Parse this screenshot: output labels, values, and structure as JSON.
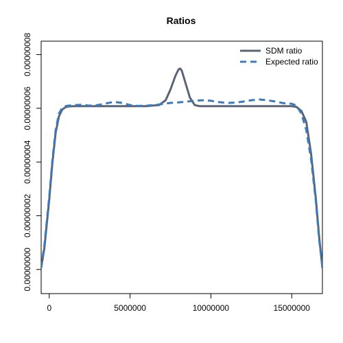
{
  "chart_data": {
    "type": "line",
    "title": "Ratios",
    "xlabel": "",
    "ylabel": "",
    "xlim": [
      -500000,
      16900000
    ],
    "ylim": [
      -9e-09,
      8.5e-08
    ],
    "x_ticks": [
      0,
      5000000,
      10000000,
      15000000
    ],
    "x_tick_labels": [
      "0",
      "5000000",
      "10000000",
      "15000000"
    ],
    "y_ticks": [
      0,
      2e-08,
      4e-08,
      6e-08,
      8e-08
    ],
    "y_tick_labels": [
      "0.00000000",
      "0.00000002",
      "0.00000004",
      "0.00000006",
      "0.00000008"
    ],
    "grid": false,
    "legend_position": "top-right",
    "series": [
      {
        "name": "SDM ratio",
        "color": "#5a6474",
        "style": "solid",
        "x": [
          -500000,
          -300000,
          0,
          200000,
          400000,
          600000,
          800000,
          1000000,
          1200000,
          1500000,
          2000000,
          3000000,
          4000000,
          5000000,
          6000000,
          6800000,
          7200000,
          7500000,
          7800000,
          8000000,
          8100000,
          8200000,
          8400000,
          8700000,
          9000000,
          9300000,
          9600000,
          10000000,
          11000000,
          12000000,
          13000000,
          14000000,
          15000000,
          15300000,
          15600000,
          15900000,
          16200000,
          16500000,
          16700000,
          16900000
        ],
        "values": [
          5e-10,
          8e-09,
          2.6e-08,
          4e-08,
          5.1e-08,
          5.7e-08,
          5.95e-08,
          6.04e-08,
          6.07e-08,
          6.08e-08,
          6.08e-08,
          6.08e-08,
          6.08e-08,
          6.08e-08,
          6.08e-08,
          6.12e-08,
          6.3e-08,
          6.7e-08,
          7.2e-08,
          7.45e-08,
          7.48e-08,
          7.4e-08,
          7e-08,
          6.4e-08,
          6.12e-08,
          6.08e-08,
          6.08e-08,
          6.08e-08,
          6.08e-08,
          6.08e-08,
          6.08e-08,
          6.08e-08,
          6.08e-08,
          6.05e-08,
          5.9e-08,
          5.5e-08,
          4.3e-08,
          2.6e-08,
          1.2e-08,
          5e-10
        ]
      },
      {
        "name": "Expected ratio",
        "color": "#3a7bbf",
        "style": "dashed",
        "x": [
          -500000,
          -300000,
          0,
          200000,
          400000,
          600000,
          800000,
          1000000,
          1200000,
          1500000,
          2000000,
          2500000,
          3000000,
          3500000,
          4000000,
          4500000,
          5000000,
          5500000,
          6000000,
          6500000,
          7000000,
          7500000,
          8000000,
          8500000,
          9000000,
          9500000,
          10000000,
          10500000,
          11000000,
          11500000,
          12000000,
          12500000,
          13000000,
          13500000,
          14000000,
          14500000,
          15000000,
          15300000,
          15600000,
          15900000,
          16200000,
          16500000,
          16700000,
          16900000
        ],
        "values": [
          8e-10,
          9e-09,
          2.7e-08,
          4.1e-08,
          5.2e-08,
          5.8e-08,
          6.02e-08,
          6.08e-08,
          6.1e-08,
          6.12e-08,
          6.13e-08,
          6.1e-08,
          6.12e-08,
          6.18e-08,
          6.24e-08,
          6.2e-08,
          6.12e-08,
          6.09e-08,
          6.1e-08,
          6.12e-08,
          6.16e-08,
          6.2e-08,
          6.22e-08,
          6.25e-08,
          6.28e-08,
          6.3e-08,
          6.28e-08,
          6.23e-08,
          6.2e-08,
          6.21e-08,
          6.25e-08,
          6.3e-08,
          6.33e-08,
          6.3e-08,
          6.25e-08,
          6.19e-08,
          6.17e-08,
          6.1e-08,
          5.8e-08,
          5.2e-08,
          4.1e-08,
          2.5e-08,
          1.1e-08,
          1e-09
        ]
      }
    ]
  }
}
